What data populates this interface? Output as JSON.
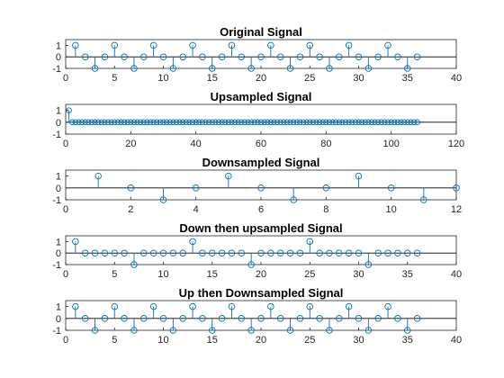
{
  "colors": {
    "series": "#0072BD",
    "axes": "#262626",
    "baseline": "#000000"
  },
  "chart_data": [
    {
      "type": "stem",
      "title": "Original Signal",
      "xlim": [
        0,
        40
      ],
      "ylim": [
        -1,
        1.5
      ],
      "xticks": [
        0,
        5,
        10,
        15,
        20,
        25,
        30,
        35,
        40
      ],
      "yticks": [
        -1,
        0,
        1
      ],
      "x": [
        1,
        2,
        3,
        4,
        5,
        6,
        7,
        8,
        9,
        10,
        11,
        12,
        13,
        14,
        15,
        16,
        17,
        18,
        19,
        20,
        21,
        22,
        23,
        24,
        25,
        26,
        27,
        28,
        29,
        30,
        31,
        32,
        33,
        34,
        35,
        36
      ],
      "y": [
        1,
        0,
        -1,
        0,
        1,
        0,
        -1,
        0,
        1,
        0,
        -1,
        0,
        1,
        0,
        -1,
        0,
        1,
        0,
        -1,
        0,
        1,
        0,
        -1,
        0,
        1,
        0,
        -1,
        0,
        1,
        0,
        -1,
        0,
        1,
        0,
        -1,
        0
      ]
    },
    {
      "type": "stem",
      "title": "Upsampled Signal",
      "xlim": [
        0,
        120
      ],
      "ylim": [
        -1,
        1.5
      ],
      "xticks": [
        0,
        20,
        40,
        60,
        80,
        100,
        120
      ],
      "yticks": [
        -1,
        0,
        1
      ],
      "x": [
        1,
        2,
        3,
        4,
        5,
        6,
        7,
        8,
        9,
        10,
        11,
        12,
        13,
        14,
        15,
        16,
        17,
        18,
        19,
        20,
        21,
        22,
        23,
        24,
        25,
        26,
        27,
        28,
        29,
        30,
        31,
        32,
        33,
        34,
        35,
        36,
        37,
        38,
        39,
        40,
        41,
        42,
        43,
        44,
        45,
        46,
        47,
        48,
        49,
        50,
        51,
        52,
        53,
        54,
        55,
        56,
        57,
        58,
        59,
        60,
        61,
        62,
        63,
        64,
        65,
        66,
        67,
        68,
        69,
        70,
        71,
        72,
        73,
        74,
        75,
        76,
        77,
        78,
        79,
        80,
        81,
        82,
        83,
        84,
        85,
        86,
        87,
        88,
        89,
        90,
        91,
        92,
        93,
        94,
        95,
        96,
        97,
        98,
        99,
        100,
        101,
        102,
        103,
        104,
        105,
        106,
        107,
        108
      ],
      "y": [
        1,
        0,
        0,
        0,
        0,
        0,
        0,
        0,
        0,
        0,
        0,
        0,
        0,
        0,
        0,
        0,
        0,
        0,
        0,
        0,
        0,
        0,
        0,
        0,
        0,
        0,
        0,
        0,
        0,
        0,
        0,
        0,
        0,
        0,
        0,
        0,
        0,
        0,
        0,
        0,
        0,
        0,
        0,
        0,
        0,
        0,
        0,
        0,
        0,
        0,
        0,
        0,
        0,
        0,
        0,
        0,
        0,
        0,
        0,
        0,
        0,
        0,
        0,
        0,
        0,
        0,
        0,
        0,
        0,
        0,
        0,
        0,
        0,
        0,
        0,
        0,
        0,
        0,
        0,
        0,
        0,
        0,
        0,
        0,
        0,
        0,
        0,
        0,
        0,
        0,
        0,
        0,
        0,
        0,
        0,
        0,
        0,
        0,
        0,
        0,
        0,
        0,
        0,
        0,
        0,
        0,
        0,
        0
      ]
    },
    {
      "type": "stem",
      "title": "Downsampled Signal",
      "xlim": [
        0,
        12
      ],
      "ylim": [
        -1,
        1.5
      ],
      "xticks": [
        0,
        2,
        4,
        6,
        8,
        10,
        12
      ],
      "yticks": [
        -1,
        0,
        1
      ],
      "x": [
        1,
        2,
        3,
        4,
        5,
        6,
        7,
        8,
        9,
        10,
        11,
        12
      ],
      "y": [
        1,
        0,
        -1,
        0,
        1,
        0,
        -1,
        0,
        1,
        0,
        -1,
        0
      ]
    },
    {
      "type": "stem",
      "title": "Down then upsampled Signal",
      "xlim": [
        0,
        40
      ],
      "ylim": [
        -1,
        1.5
      ],
      "xticks": [
        0,
        5,
        10,
        15,
        20,
        25,
        30,
        35,
        40
      ],
      "yticks": [
        -1,
        0,
        1
      ],
      "x": [
        1,
        2,
        3,
        4,
        5,
        6,
        7,
        8,
        9,
        10,
        11,
        12,
        13,
        14,
        15,
        16,
        17,
        18,
        19,
        20,
        21,
        22,
        23,
        24,
        25,
        26,
        27,
        28,
        29,
        30,
        31,
        32,
        33,
        34,
        35,
        36
      ],
      "y": [
        1,
        0,
        0,
        0,
        0,
        0,
        -1,
        0,
        0,
        0,
        0,
        0,
        1,
        0,
        0,
        0,
        0,
        0,
        -1,
        0,
        0,
        0,
        0,
        0,
        1,
        0,
        0,
        0,
        0,
        0,
        -1,
        0,
        0,
        0,
        0,
        0
      ]
    },
    {
      "type": "stem",
      "title": "Up then Downsampled Signal",
      "xlim": [
        0,
        40
      ],
      "ylim": [
        -1,
        1.5
      ],
      "xticks": [
        0,
        5,
        10,
        15,
        20,
        25,
        30,
        35,
        40
      ],
      "yticks": [
        -1,
        0,
        1
      ],
      "x": [
        1,
        2,
        3,
        4,
        5,
        6,
        7,
        8,
        9,
        10,
        11,
        12,
        13,
        14,
        15,
        16,
        17,
        18,
        19,
        20,
        21,
        22,
        23,
        24,
        25,
        26,
        27,
        28,
        29,
        30,
        31,
        32,
        33,
        34,
        35,
        36
      ],
      "y": [
        1,
        0,
        -1,
        0,
        1,
        0,
        -1,
        0,
        1,
        0,
        -1,
        0,
        1,
        0,
        -1,
        0,
        1,
        0,
        -1,
        0,
        1,
        0,
        -1,
        0,
        1,
        0,
        -1,
        0,
        1,
        0,
        -1,
        0,
        1,
        0,
        -1,
        0
      ]
    }
  ]
}
